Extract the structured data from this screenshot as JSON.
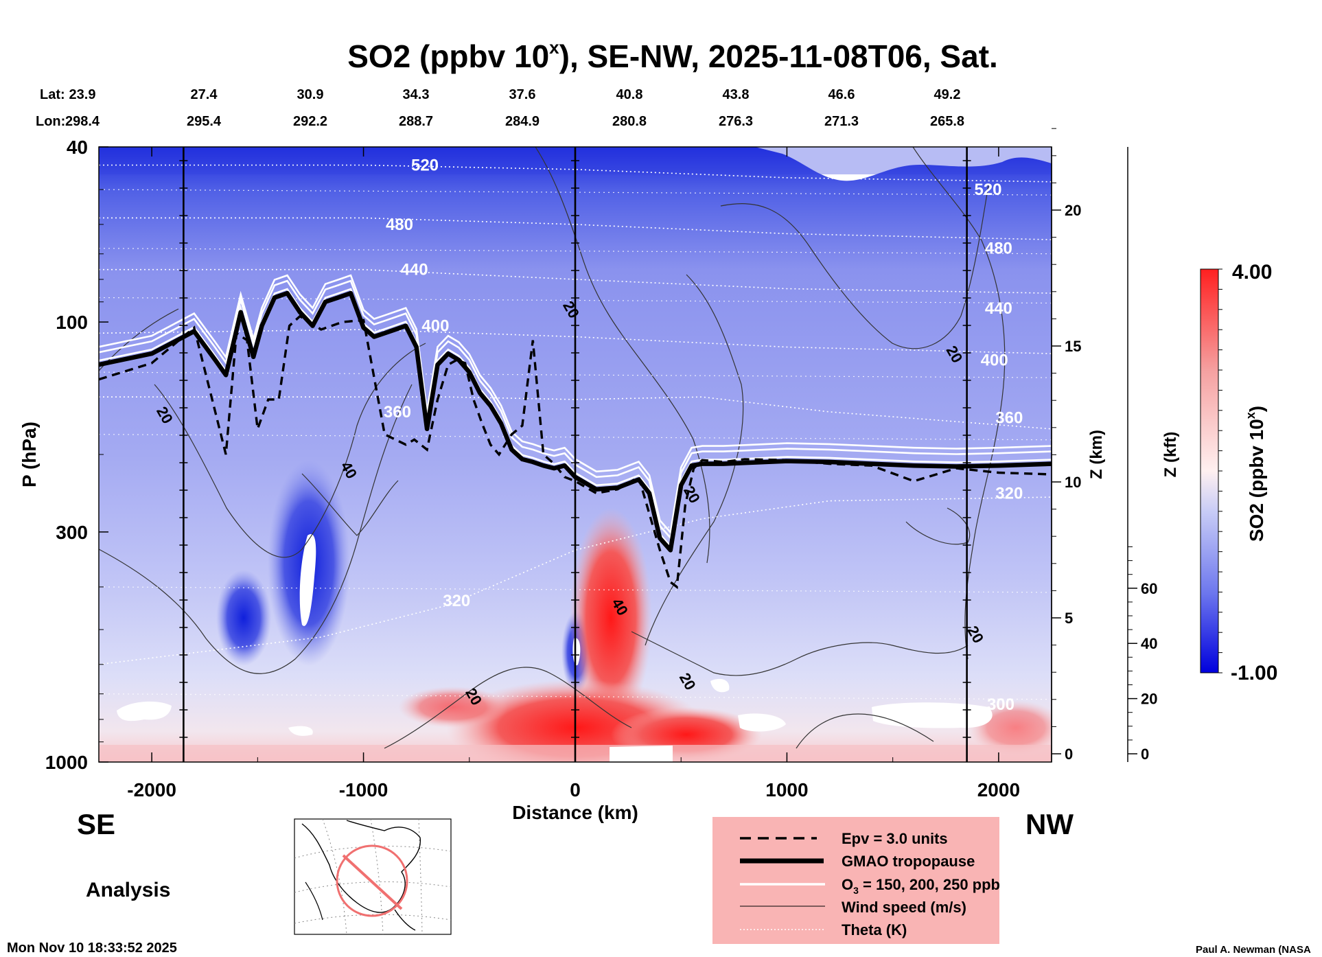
{
  "chart_data": {
    "type": "heatmap",
    "title": "SO2 (ppbv 10",
    "title_sup": "x",
    "title_rest": "), SE-NW, 2025-11-08T06, Sat.",
    "xlabel": "Distance (km)",
    "ylabel": "P (hPa)",
    "xlim": [
      -2250,
      2250
    ],
    "ylim": [
      1000,
      40
    ],
    "x_ticks": [
      -2000,
      -1000,
      0,
      1000,
      2000
    ],
    "x_tick_labels": [
      "-2000",
      "-1000",
      "0",
      "1000",
      "2000"
    ],
    "p_ticks": [
      40,
      100,
      300,
      1000
    ],
    "p_tick_labels": [
      "40",
      "100",
      "300",
      "1000"
    ],
    "z_km_label": "Z (km)",
    "z_km_ticks": [
      0,
      5,
      10,
      15,
      20
    ],
    "z_kft_label": "Z (kft)",
    "z_kft_ticks": [
      0,
      20,
      40,
      60
    ],
    "lat_label": "Lat:",
    "lon_label": "Lon:",
    "lat_values": [
      "23.9",
      "27.4",
      "30.9",
      "34.3",
      "37.6",
      "40.8",
      "43.8",
      "46.6",
      "49.2"
    ],
    "lon_values": [
      "298.4",
      "295.4",
      "292.2",
      "288.7",
      "284.9",
      "280.8",
      "276.3",
      "271.3",
      "265.8"
    ],
    "section_markers_km": [
      -1850,
      0,
      1850
    ],
    "colorbar": {
      "label": "SO2 (ppbv 10",
      "label_sup": "x",
      "label_rest": ")",
      "max_label": "4.00",
      "min_label": "-1.00",
      "min": -1.0,
      "max": 4.0,
      "colors": [
        "#0000dd",
        "#6e78ee",
        "#c8ccf6",
        "#fff0f0",
        "#f5a0a0",
        "#ff2020"
      ]
    },
    "theta_contours": [
      {
        "value": 320,
        "label": "320",
        "km": [
          -2250,
          -1200,
          -600,
          0,
          600,
          1200,
          2250
        ],
        "hpa": [
          600,
          520,
          440,
          330,
          280,
          255,
          250
        ]
      },
      {
        "value": 360,
        "label": "360",
        "km": [
          -2250,
          -1200,
          -600,
          0,
          600,
          1200,
          2250
        ],
        "hpa": [
          148,
          148,
          148,
          150,
          148,
          160,
          175
        ]
      },
      {
        "value": 400,
        "label": "400",
        "km": [
          -2250,
          -1000,
          0,
          1000,
          2250
        ],
        "hpa": [
          106,
          104,
          108,
          114,
          118
        ]
      },
      {
        "value": 440,
        "label": "440",
        "km": [
          -2250,
          -1000,
          0,
          1000,
          2250
        ],
        "hpa": [
          76,
          76,
          80,
          84,
          86
        ]
      },
      {
        "value": 480,
        "label": "480",
        "km": [
          -2250,
          -1000,
          0,
          1000,
          2250
        ],
        "hpa": [
          58,
          58,
          60,
          63,
          65
        ]
      },
      {
        "value": 520,
        "label": "520",
        "km": [
          -2250,
          -1000,
          0,
          1000,
          2250
        ],
        "hpa": [
          44,
          44,
          45,
          47,
          48
        ]
      }
    ],
    "theta_extra_labels": [
      {
        "label": "360",
        "km": 2050,
        "hpa": 165
      },
      {
        "label": "400",
        "km": 1980,
        "hpa": 122
      },
      {
        "label": "440",
        "km": 2000,
        "hpa": 93
      },
      {
        "label": "480",
        "km": 2000,
        "hpa": 68
      },
      {
        "label": "520",
        "km": 1950,
        "hpa": 50
      },
      {
        "label": "360",
        "km": -840,
        "hpa": 160
      },
      {
        "label": "400",
        "km": -660,
        "hpa": 102
      },
      {
        "label": "440",
        "km": -760,
        "hpa": 76
      },
      {
        "label": "480",
        "km": -830,
        "hpa": 60
      },
      {
        "label": "520",
        "km": -710,
        "hpa": 44
      },
      {
        "label": "320",
        "km": 2050,
        "hpa": 245
      },
      {
        "label": "320",
        "km": -560,
        "hpa": 430
      },
      {
        "label": "300",
        "km": 2010,
        "hpa": 740
      }
    ],
    "tropopause": {
      "km": [
        -2250,
        -2000,
        -1800,
        -1700,
        -1650,
        -1580,
        -1520,
        -1480,
        -1420,
        -1360,
        -1300,
        -1240,
        -1180,
        -1120,
        -1060,
        -1000,
        -950,
        -900,
        -850,
        -800,
        -750,
        -700,
        -650,
        -600,
        -550,
        -500,
        -450,
        -400,
        -350,
        -300,
        -250,
        -200,
        -150,
        -100,
        -50,
        0,
        100,
        200,
        300,
        350,
        400,
        450,
        500,
        550,
        600,
        700,
        800,
        1000,
        1200,
        1400,
        1600,
        1800,
        2000,
        2250
      ],
      "hpa": [
        125,
        118,
        105,
        122,
        132,
        95,
        120,
        102,
        88,
        86,
        95,
        102,
        90,
        88,
        86,
        103,
        108,
        106,
        104,
        102,
        114,
        175,
        125,
        118,
        122,
        130,
        145,
        155,
        170,
        195,
        205,
        208,
        212,
        215,
        212,
        225,
        240,
        238,
        228,
        245,
        310,
        330,
        235,
        212,
        210,
        210,
        209,
        207,
        208,
        210,
        212,
        213,
        212,
        210
      ]
    },
    "epv_3_units": {
      "km": [
        -2250,
        -2000,
        -1800,
        -1700,
        -1650,
        -1600,
        -1550,
        -1500,
        -1450,
        -1400,
        -1350,
        -1300,
        -1200,
        -1100,
        -1000,
        -900,
        -800,
        -760,
        -700,
        -650,
        -600,
        -560,
        -520,
        -480,
        -440,
        -400,
        -360,
        -300,
        -250,
        -200,
        -150,
        -100,
        -50,
        0,
        100,
        200,
        300,
        400,
        450,
        480,
        520,
        560,
        600,
        700,
        800,
        1000,
        1200,
        1400,
        1600,
        1800,
        2000,
        2250
      ],
      "hpa": [
        135,
        124,
        103,
        160,
        200,
        106,
        110,
        175,
        150,
        150,
        102,
        97,
        104,
        100,
        99,
        180,
        190,
        185,
        195,
        150,
        125,
        122,
        124,
        150,
        170,
        190,
        200,
        180,
        172,
        110,
        200,
        210,
        225,
        230,
        245,
        240,
        225,
        330,
        390,
        400,
        260,
        215,
        206,
        208,
        205,
        206,
        210,
        212,
        230,
        215,
        220,
        222
      ]
    },
    "legend": [
      {
        "key": "epv",
        "label": "Epv = 3.0 units"
      },
      {
        "key": "tropopause",
        "label": "GMAO tropopause"
      },
      {
        "key": "ozone",
        "label": "O",
        "sub": "3",
        "rest": " = 150, 200, 250 ppb"
      },
      {
        "key": "wind",
        "label": "Wind speed (m/s)"
      },
      {
        "key": "theta",
        "label": "Theta (K)"
      }
    ],
    "wind_labels": [
      {
        "label": "20",
        "km": -1960,
        "hpa": 165
      },
      {
        "label": "40",
        "km": -1090,
        "hpa": 220
      },
      {
        "label": "20",
        "km": -500,
        "hpa": 720
      },
      {
        "label": "20",
        "km": -40,
        "hpa": 95
      },
      {
        "label": "40",
        "km": 190,
        "hpa": 450
      },
      {
        "label": "20",
        "km": 530,
        "hpa": 250
      },
      {
        "label": "20",
        "km": 510,
        "hpa": 665
      },
      {
        "label": "20",
        "km": 1770,
        "hpa": 120
      },
      {
        "label": "20",
        "km": 1870,
        "hpa": 520
      }
    ]
  },
  "labels": {
    "se": "SE",
    "nw": "NW",
    "analysis": "Analysis",
    "timestamp": "Mon Nov 10 18:33:52 2025",
    "credit": "Paul A. Newman (NASA"
  }
}
